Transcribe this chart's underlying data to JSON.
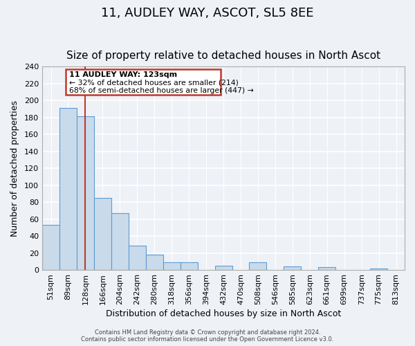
{
  "title": "11, AUDLEY WAY, ASCOT, SL5 8EE",
  "subtitle": "Size of property relative to detached houses in North Ascot",
  "xlabel": "Distribution of detached houses by size in North Ascot",
  "ylabel": "Number of detached properties",
  "bin_labels": [
    "51sqm",
    "89sqm",
    "128sqm",
    "166sqm",
    "204sqm",
    "242sqm",
    "280sqm",
    "318sqm",
    "356sqm",
    "394sqm",
    "432sqm",
    "470sqm",
    "508sqm",
    "546sqm",
    "585sqm",
    "623sqm",
    "661sqm",
    "699sqm",
    "737sqm",
    "775sqm",
    "813sqm"
  ],
  "bar_values": [
    53,
    191,
    181,
    85,
    67,
    29,
    18,
    9,
    9,
    0,
    5,
    0,
    9,
    0,
    4,
    0,
    3,
    0,
    0,
    2,
    0
  ],
  "bar_color": "#c9daea",
  "bar_edge_color": "#5b9bd5",
  "vline_x": 2,
  "vline_color": "#c0392b",
  "ylim": [
    0,
    240
  ],
  "yticks": [
    0,
    20,
    40,
    60,
    80,
    100,
    120,
    140,
    160,
    180,
    200,
    220,
    240
  ],
  "annotation_title": "11 AUDLEY WAY: 123sqm",
  "annotation_line1": "← 32% of detached houses are smaller (214)",
  "annotation_line2": "68% of semi-detached houses are larger (447) →",
  "annotation_box_color": "#ffffff",
  "annotation_box_edge": "#c0392b",
  "footer1": "Contains HM Land Registry data © Crown copyright and database right 2024.",
  "footer2": "Contains public sector information licensed under the Open Government Licence v3.0.",
  "background_color": "#eef2f7",
  "grid_color": "#ffffff",
  "title_fontsize": 13,
  "subtitle_fontsize": 11,
  "axis_label_fontsize": 9,
  "tick_fontsize": 8
}
